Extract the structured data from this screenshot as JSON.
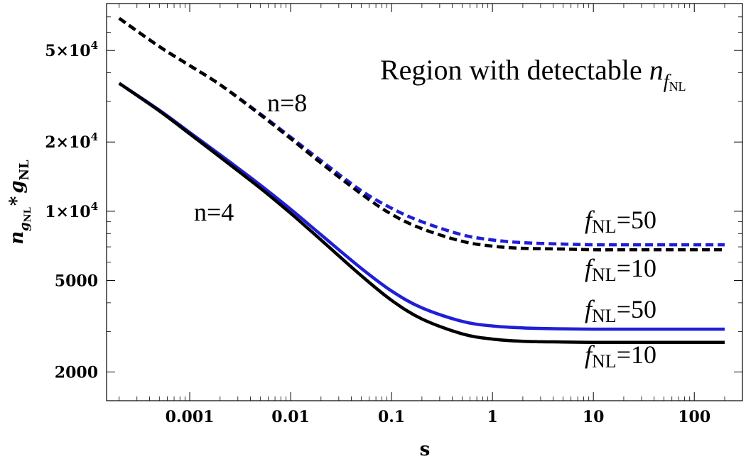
{
  "chart_data": {
    "type": "line",
    "title": "",
    "xlabel": "s",
    "ylabel": {
      "main": "n",
      "main_sub": "g",
      "main_subsub": "NL",
      "star": "*",
      "var": "g",
      "var_sub": "NL"
    },
    "xscale": "log",
    "yscale": "log",
    "xlim": [
      0.00015,
      300
    ],
    "ylim": [
      1500,
      80000
    ],
    "x_ticks": [
      {
        "value": 0.001,
        "label": "0.001"
      },
      {
        "value": 0.01,
        "label": "0.01"
      },
      {
        "value": 0.1,
        "label": "0.1"
      },
      {
        "value": 1,
        "label": "1"
      },
      {
        "value": 10,
        "label": "10"
      },
      {
        "value": 100,
        "label": "100"
      }
    ],
    "y_ticks": [
      {
        "value": 2000,
        "label": "2000"
      },
      {
        "value": 5000,
        "label": "5000"
      },
      {
        "value": 10000,
        "label": "1×10",
        "exp": "4"
      },
      {
        "value": 20000,
        "label": "2×10",
        "exp": "4"
      },
      {
        "value": 50000,
        "label": "5×10",
        "exp": "4"
      }
    ],
    "series": [
      {
        "key": "n8_f50",
        "style": "dashed",
        "color": "#1f1fd6",
        "x": [
          0.0002,
          0.0005,
          0.001,
          0.002,
          0.005,
          0.01,
          0.02,
          0.05,
          0.1,
          0.2,
          0.5,
          1,
          2,
          5,
          10,
          20,
          50,
          100,
          200
        ],
        "y": [
          69000,
          52000,
          43000,
          35500,
          26500,
          21000,
          16600,
          12300,
          10300,
          9000,
          7900,
          7500,
          7300,
          7200,
          7150,
          7150,
          7150,
          7150,
          7150
        ]
      },
      {
        "key": "n8_f10",
        "style": "dashed",
        "color": "#000000",
        "x": [
          0.0002,
          0.0005,
          0.001,
          0.002,
          0.005,
          0.01,
          0.02,
          0.05,
          0.1,
          0.2,
          0.5,
          1,
          2,
          5,
          10,
          20,
          50,
          100,
          200
        ],
        "y": [
          69000,
          52000,
          43000,
          35500,
          26300,
          20700,
          16200,
          11900,
          9700,
          8400,
          7400,
          7050,
          6900,
          6850,
          6800,
          6800,
          6800,
          6800,
          6800
        ]
      },
      {
        "key": "n4_f50",
        "style": "solid",
        "color": "#1f1fd6",
        "x": [
          0.0002,
          0.0005,
          0.001,
          0.002,
          0.005,
          0.01,
          0.02,
          0.05,
          0.1,
          0.2,
          0.5,
          1,
          2,
          5,
          10,
          20,
          50,
          100,
          200
        ],
        "y": [
          36000,
          27500,
          22000,
          17600,
          13000,
          10200,
          7900,
          5650,
          4500,
          3800,
          3320,
          3170,
          3110,
          3080,
          3070,
          3070,
          3070,
          3070,
          3070
        ]
      },
      {
        "key": "n4_f10",
        "style": "solid",
        "color": "#000000",
        "x": [
          0.0002,
          0.0005,
          0.001,
          0.002,
          0.005,
          0.01,
          0.02,
          0.05,
          0.1,
          0.2,
          0.5,
          1,
          2,
          5,
          10,
          20,
          50,
          100,
          200
        ],
        "y": [
          36000,
          27300,
          21700,
          17200,
          12600,
          9800,
          7500,
          5250,
          4100,
          3400,
          2930,
          2780,
          2720,
          2700,
          2690,
          2690,
          2690,
          2690,
          2690
        ]
      }
    ],
    "annotations": {
      "region": {
        "text": "Region with detectable ",
        "var": "n",
        "sub": "f",
        "subsub": "NL"
      },
      "n8": "n=8",
      "n4": "n=4",
      "f_var": "f",
      "f_sub": "NL",
      "f50_upper": "=50",
      "f10_upper": "=10",
      "f50_lower": "=50",
      "f10_lower": "=10"
    }
  }
}
